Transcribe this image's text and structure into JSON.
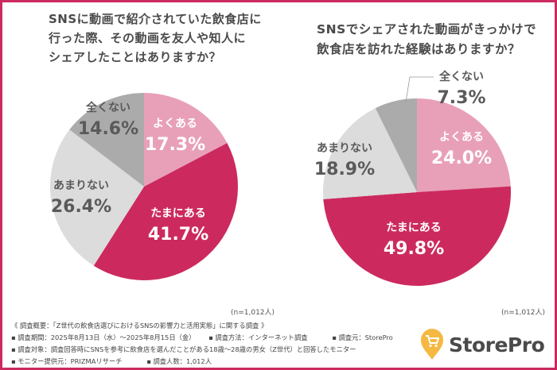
{
  "colors": {
    "frame": "#cc2a5e",
    "often": "#e8a0b8",
    "sometimes": "#cc2a5e",
    "rarely": "#dcdcdc",
    "never": "#ababab",
    "logo_pin": "#f5b841"
  },
  "chart_data": [
    {
      "type": "pie",
      "title": "SNSに動画で紹介されていた飲食店に\n行った際、その動画を友人や知人に\nシェアしたことはありますか？",
      "sample": "(n=1,012人)",
      "start": "12 o'clock, clockwise",
      "slices": [
        {
          "label": "よくある",
          "value": 17.3,
          "display": "17.3%",
          "color_key": "often"
        },
        {
          "label": "たまにある",
          "value": 41.7,
          "display": "41.7%",
          "color_key": "sometimes"
        },
        {
          "label": "あまりない",
          "value": 26.4,
          "display": "26.4%",
          "color_key": "rarely"
        },
        {
          "label": "全くない",
          "value": 14.6,
          "display": "14.6%",
          "color_key": "never"
        }
      ]
    },
    {
      "type": "pie",
      "title": "SNSでシェアされた動画がきっかけで\n飲食店を訪れた経験はありますか？",
      "sample": "(n=1,012人)",
      "start": "12 o'clock, clockwise",
      "slices": [
        {
          "label": "よくある",
          "value": 24.0,
          "display": "24.0%",
          "color_key": "often"
        },
        {
          "label": "たまにある",
          "value": 49.8,
          "display": "49.8%",
          "color_key": "sometimes"
        },
        {
          "label": "あまりない",
          "value": 18.9,
          "display": "18.9%",
          "color_key": "rarely"
        },
        {
          "label": "全くない",
          "value": 7.3,
          "display": "7.3%",
          "color_key": "never"
        }
      ]
    }
  ],
  "footer": {
    "overview": "《 調査概要：「Z世代の飲食店選びにおけるSNSの影響力と活用実態」に関する調査 》",
    "period": "▪ 調査期間：2025年8月13日（水）～2025年8月15日（金）",
    "method": "▪ 調査方法：インターネット調査",
    "source": "▪ 調査元：StorePro",
    "target": "▪ 調査対象：調査回答時にSNSを参考に飲食店を選んだことがある18歳～28歳の男女（Z世代）と回答したモニター",
    "provider": "▪ モニター提供元：PRIZMAリサーチ",
    "count": "▪ 調査人数：1,012人"
  },
  "logo": {
    "text": "StorePro",
    "icon": "cart-pin-icon"
  }
}
